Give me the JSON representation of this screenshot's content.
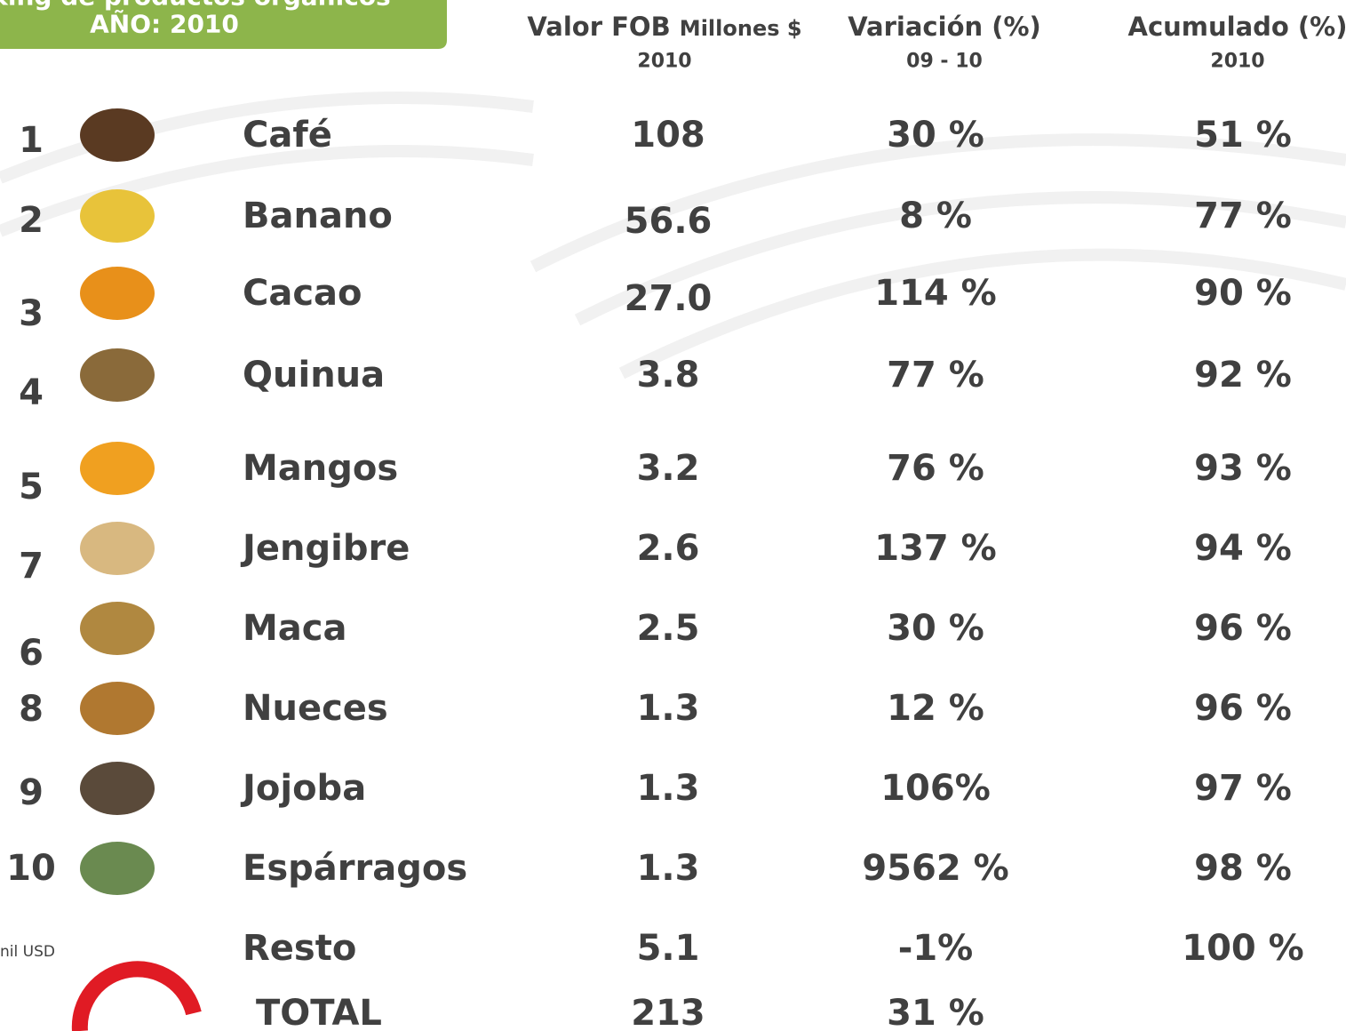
{
  "header": {
    "title": "king de productos orgánicos",
    "subtitle": "AÑO: 2010"
  },
  "columns": [
    {
      "title": "Valor FOB",
      "unit": "Millones $",
      "sub": "2010"
    },
    {
      "title": "Variación (%)",
      "sub": "09 - 10"
    },
    {
      "title": "Acumulado (%)",
      "sub": "2010"
    }
  ],
  "rows": [
    {
      "rank": "1",
      "name": "Café",
      "value": "108",
      "variation": "30 %",
      "cumulative": "51 %"
    },
    {
      "rank": "2",
      "name": "Banano",
      "value": "56.6",
      "variation": "8 %",
      "cumulative": "77 %"
    },
    {
      "rank": "3",
      "name": "Cacao",
      "value": "27.0",
      "variation": "114 %",
      "cumulative": "90 %"
    },
    {
      "rank": "4",
      "name": "Quinua",
      "value": "3.8",
      "variation": "77 %",
      "cumulative": "92 %"
    },
    {
      "rank": "5",
      "name": "Mangos",
      "value": "3.2",
      "variation": "76 %",
      "cumulative": "93 %"
    },
    {
      "rank": "7",
      "name": "Jengibre",
      "value": "2.6",
      "variation": "137 %",
      "cumulative": "94 %"
    },
    {
      "rank": "6",
      "name": "Maca",
      "value": "2.5",
      "variation": "30 %",
      "cumulative": "96 %"
    },
    {
      "rank": "8",
      "name": "Nueces",
      "value": "1.3",
      "variation": "12 %",
      "cumulative": "96 %"
    },
    {
      "rank": "9",
      "name": "Jojoba",
      "value": "1.3",
      "variation": "106%",
      "cumulative": "97 %"
    },
    {
      "rank": "10",
      "name": "Espárragos",
      "value": "1.3",
      "variation": "9562 %",
      "cumulative": "98 %"
    },
    {
      "name": "Resto",
      "value": "5.1",
      "variation": "-1%",
      "cumulative": "100 %"
    },
    {
      "name": "TOTAL",
      "value": "213",
      "variation": "31 %"
    }
  ],
  "footnote": "nil USD"
}
